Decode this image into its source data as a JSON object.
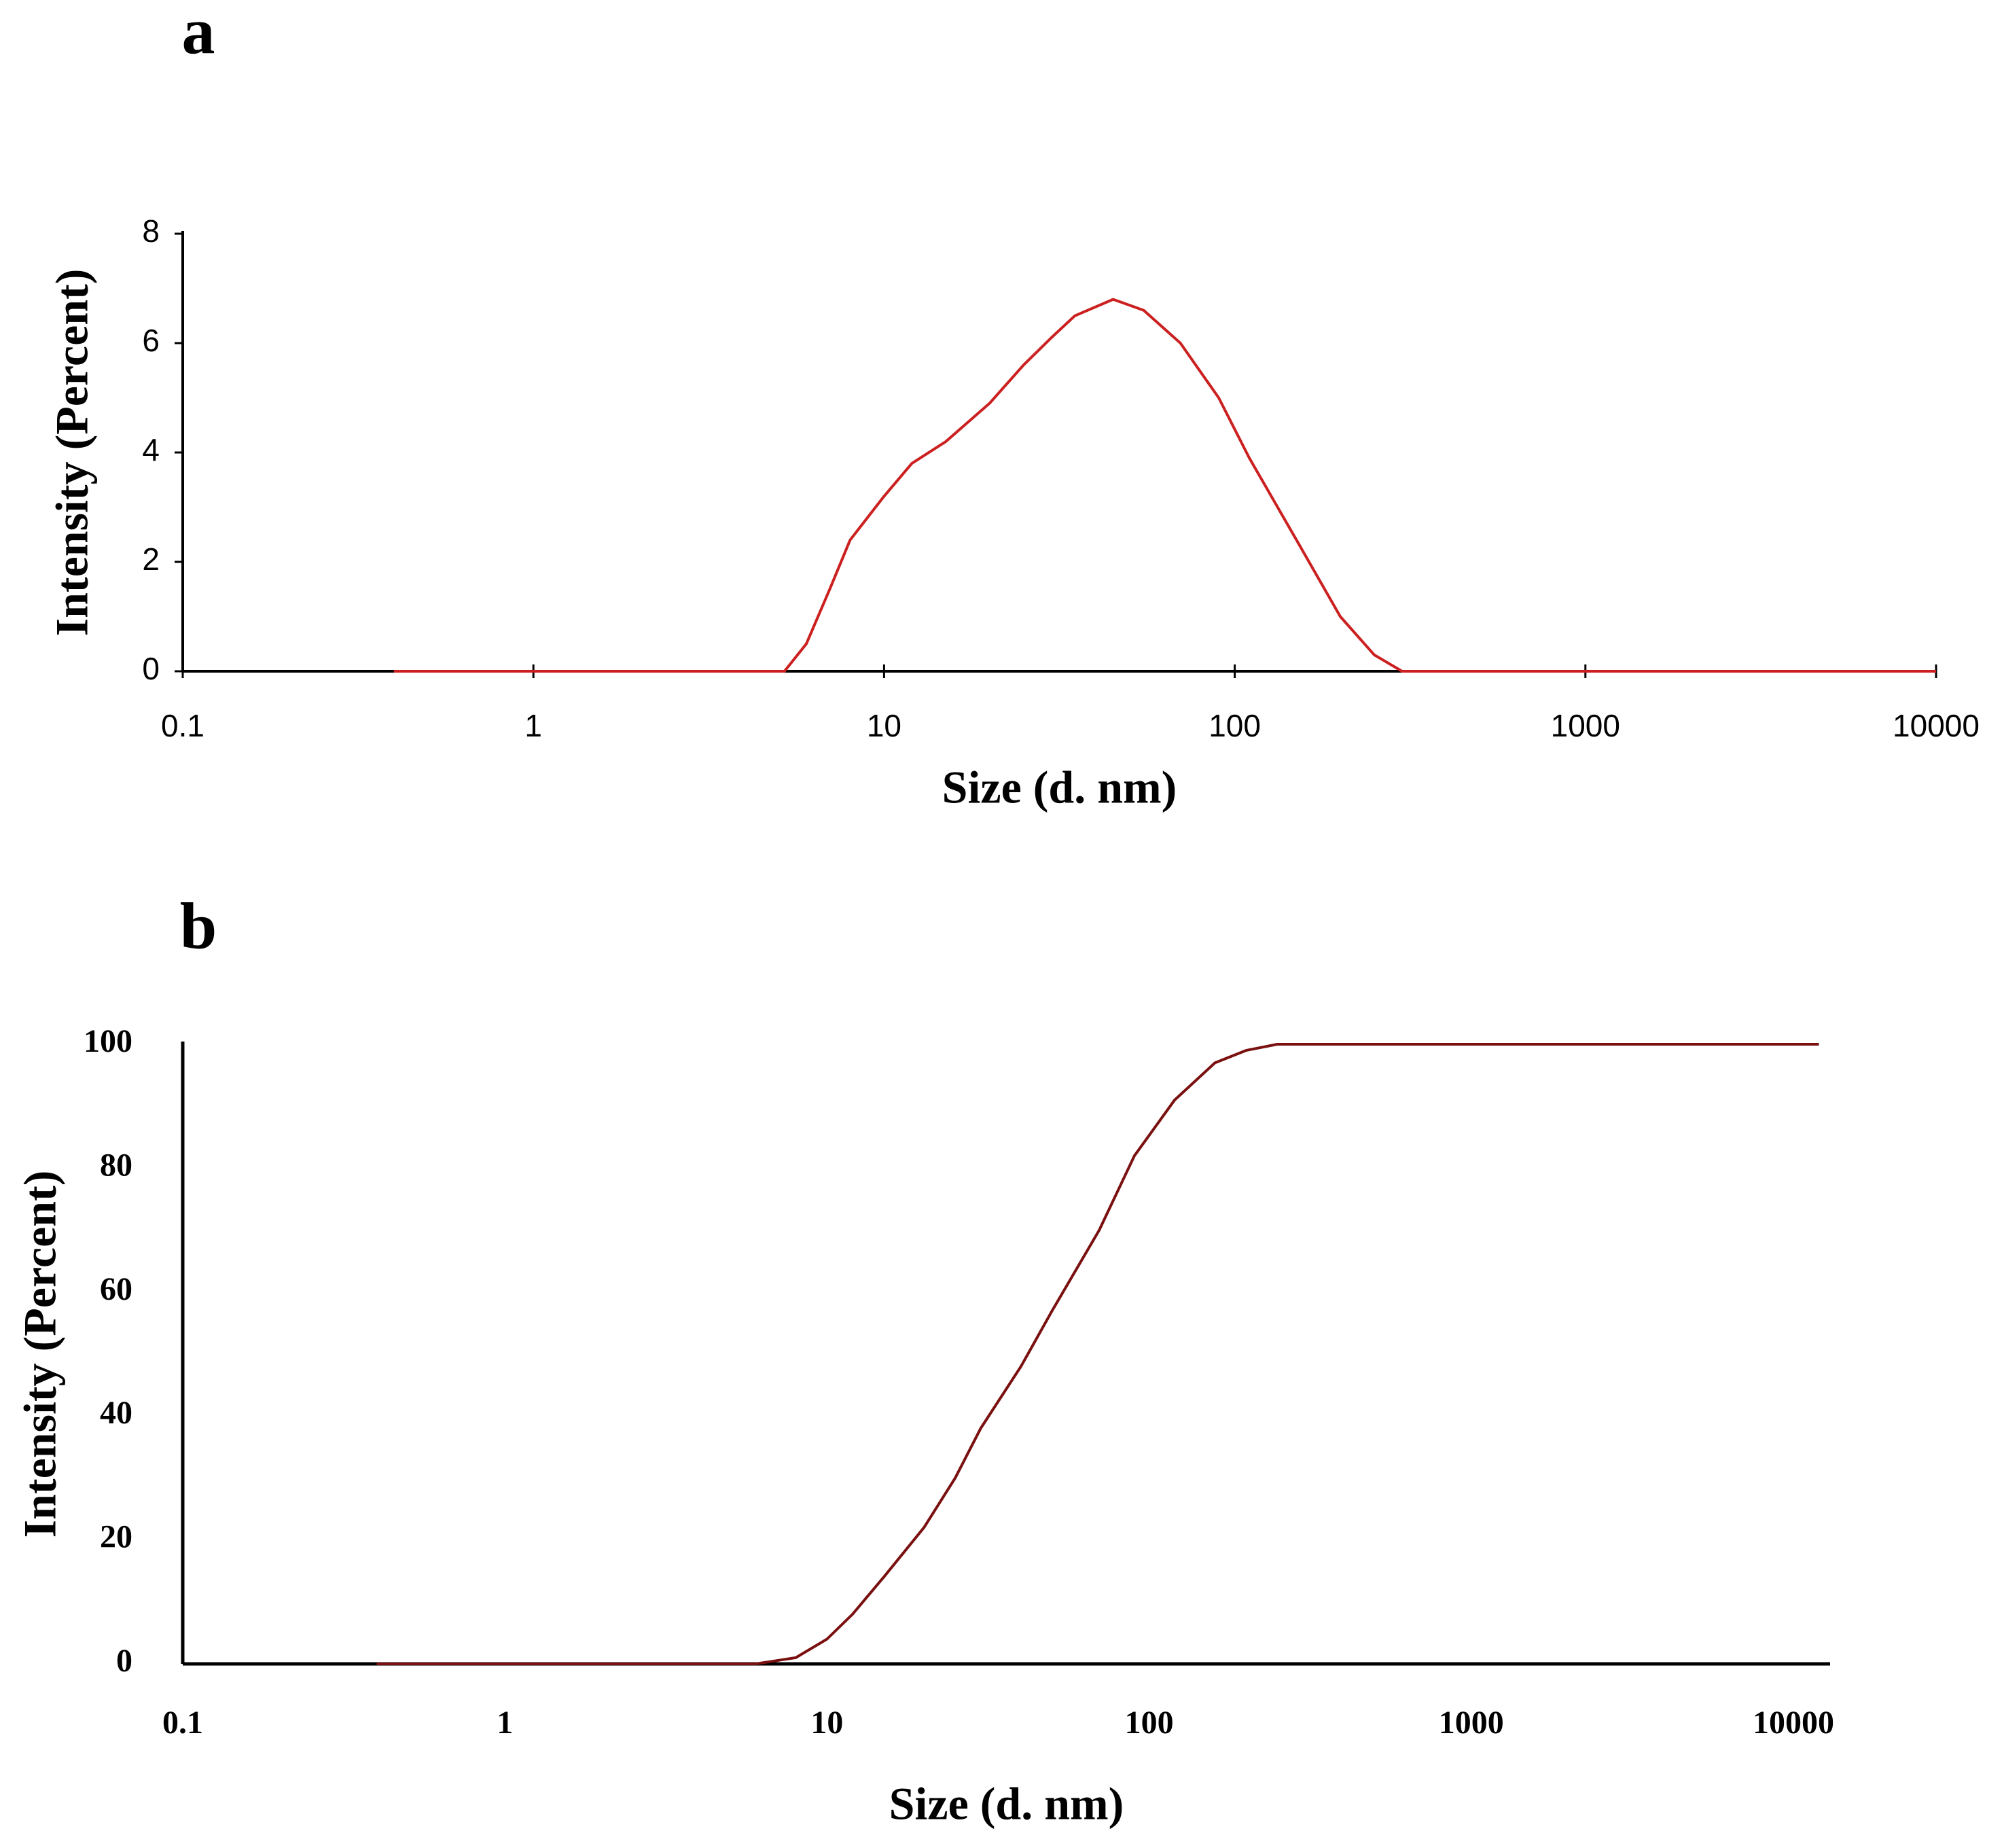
{
  "chart_data": [
    {
      "type": "line",
      "title": "a",
      "x_label": "Size (d. nm)",
      "y_label": "Intensity (Percent)",
      "xscale": "log",
      "xlim": [
        0.1,
        10000
      ],
      "xticks": [
        0.1,
        1,
        10,
        100,
        1000,
        10000
      ],
      "ylim": [
        0,
        8
      ],
      "yticks": [
        0,
        2,
        4,
        6,
        8
      ],
      "color": "#cc2020",
      "x": [
        0.4,
        5.2,
        6,
        7,
        8,
        10,
        12,
        15,
        20,
        25,
        30,
        35,
        45,
        55,
        70,
        90,
        110,
        150,
        200,
        250,
        300,
        10000
      ],
      "values": [
        0,
        0,
        0.5,
        1.5,
        2.4,
        3.2,
        3.8,
        4.2,
        4.9,
        5.6,
        6.1,
        6.5,
        6.8,
        6.6,
        6.0,
        5.0,
        3.9,
        2.4,
        1.0,
        0.3,
        0,
        0
      ]
    },
    {
      "type": "line",
      "title": "b",
      "x_label": "Size (d. nm)",
      "y_label": "Intensity (Percent)",
      "xscale": "log",
      "xlim": [
        0.1,
        13000
      ],
      "xticks": [
        0.1,
        1,
        10,
        100,
        1000,
        10000
      ],
      "ylim": [
        0,
        100
      ],
      "yticks": [
        0,
        20,
        40,
        60,
        80,
        100
      ],
      "color": "#7a1010",
      "x": [
        0.4,
        6,
        8,
        10,
        12,
        15,
        20,
        25,
        30,
        40,
        50,
        70,
        90,
        120,
        160,
        200,
        250,
        12000
      ],
      "values": [
        0,
        0,
        1,
        4,
        8,
        14,
        22,
        30,
        38,
        48,
        57,
        70,
        82,
        91,
        97,
        99,
        100,
        100
      ]
    }
  ]
}
